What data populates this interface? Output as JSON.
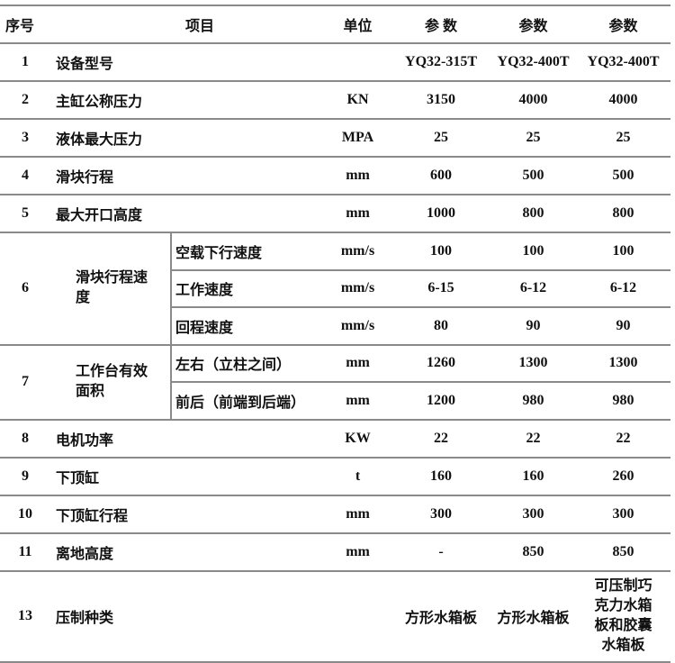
{
  "header": {
    "seq": "序号",
    "item": "项目",
    "unit": "单位",
    "p1": "参 数",
    "p2": "参数",
    "p3": "参数"
  },
  "rows": [
    {
      "seq": "1",
      "item": "设备型号",
      "unit": "",
      "values": [
        "YQ32-315T",
        "YQ32-400T",
        "YQ32-400T"
      ]
    },
    {
      "seq": "2",
      "item": "主缸公称压力",
      "unit": "KN",
      "values": [
        "3150",
        "4000",
        "4000"
      ]
    },
    {
      "seq": "3",
      "item": "液体最大压力",
      "unit": "MPA",
      "values": [
        "25",
        "25",
        "25"
      ]
    },
    {
      "seq": "4",
      "item": "滑块行程",
      "unit": "mm",
      "values": [
        "600",
        "500",
        "500"
      ]
    },
    {
      "seq": "5",
      "item": "最大开口高度",
      "unit": "mm",
      "values": [
        "1000",
        "800",
        "800"
      ]
    },
    {
      "seq": "6",
      "item": "滑块行程速度",
      "subs": [
        {
          "item": "空载下行速度",
          "unit": "mm/s",
          "values": [
            "100",
            "100",
            "100"
          ]
        },
        {
          "item": "工作速度",
          "unit": "mm/s",
          "values": [
            "6-15",
            "6-12",
            "6-12"
          ]
        },
        {
          "item": "回程速度",
          "unit": "mm/s",
          "values": [
            "80",
            "90",
            "90"
          ]
        }
      ]
    },
    {
      "seq": "7",
      "item": "工作台有效面积",
      "subs": [
        {
          "item": "左右（立柱之间）",
          "unit": "mm",
          "values": [
            "1260",
            "1300",
            "1300"
          ]
        },
        {
          "item": "前后（前端到后端）",
          "unit": "mm",
          "values": [
            "1200",
            "980",
            "980"
          ]
        }
      ]
    },
    {
      "seq": "8",
      "item": "电机功率",
      "unit": "KW",
      "values": [
        "22",
        "22",
        "22"
      ]
    },
    {
      "seq": "9",
      "item": "下顶缸",
      "unit": "t",
      "values": [
        "160",
        "160",
        "260"
      ]
    },
    {
      "seq": "10",
      "item": "下顶缸行程",
      "unit": "mm",
      "values": [
        "300",
        "300",
        "300"
      ]
    },
    {
      "seq": "11",
      "item": "离地高度",
      "unit": "mm",
      "values": [
        "-",
        "850",
        "850"
      ]
    },
    {
      "seq": "13",
      "item": "压制种类",
      "unit": "",
      "values": [
        "方形水箱板",
        "方形水箱板",
        "可压制巧克力水箱板和胶囊水箱板"
      ]
    }
  ]
}
